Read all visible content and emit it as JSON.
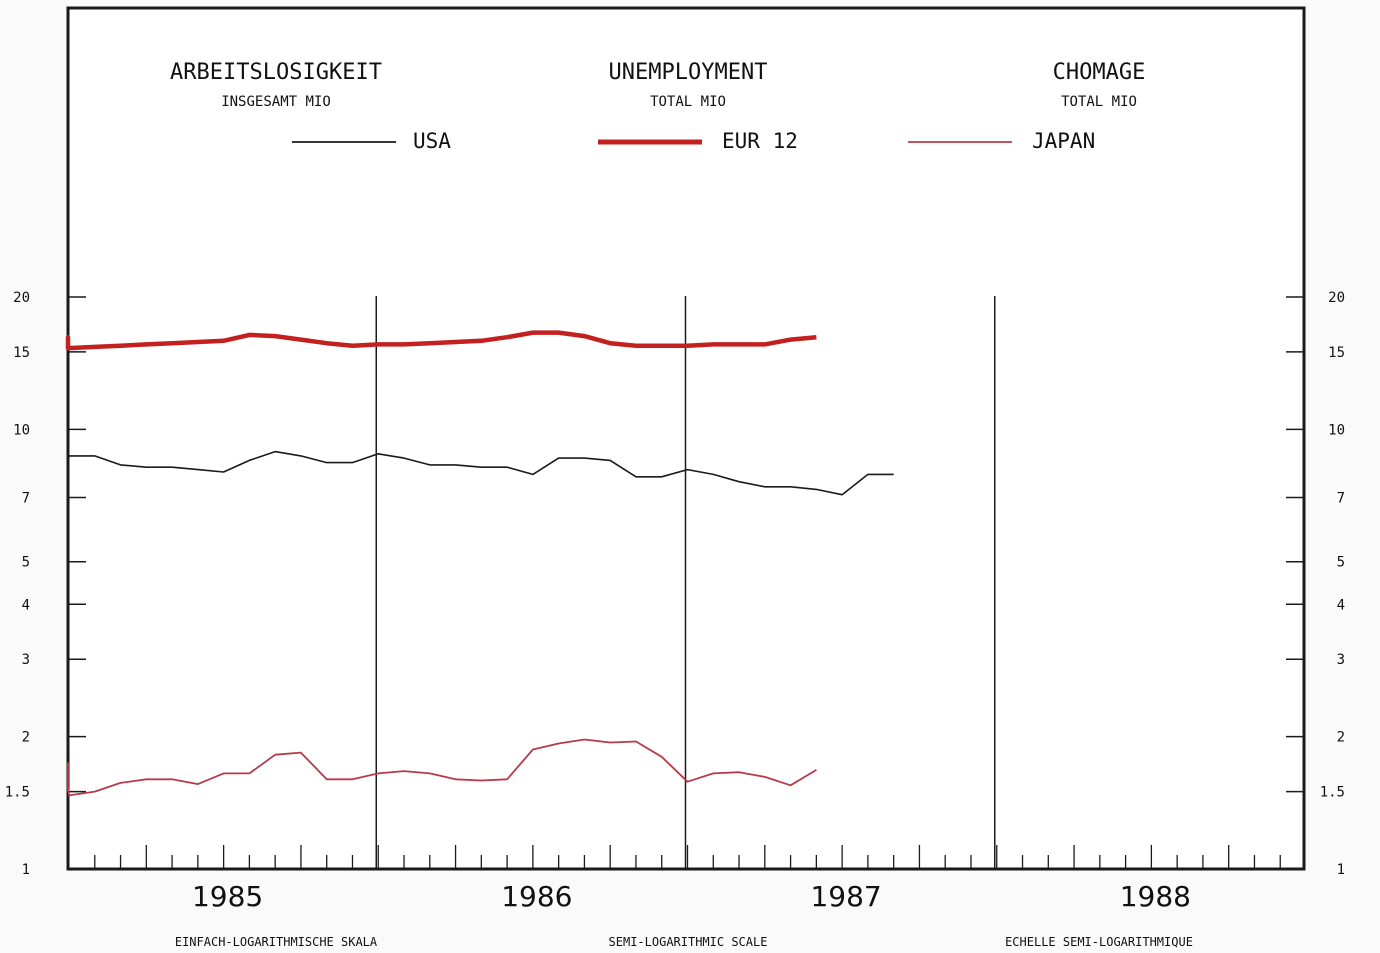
{
  "chart_data": {
    "type": "line",
    "titles": {
      "de": {
        "title": "ARBEITSLOSIGKEIT",
        "subtitle": "INSGESAMT  MIO"
      },
      "en": {
        "title": "UNEMPLOYMENT",
        "subtitle": "TOTAL  MIO"
      },
      "fr": {
        "title": "CHOMAGE",
        "subtitle": "TOTAL  MIO"
      }
    },
    "footer": {
      "de": "EINFACH-LOGARITHMISCHE SKALA",
      "en": "SEMI-LOGARITHMIC SCALE",
      "fr": "ECHELLE SEMI-LOGARITHMIQUE"
    },
    "x_ticks": [
      "1985",
      "1986",
      "1987",
      "1988"
    ],
    "y_scale": "log",
    "ylim": [
      1,
      20
    ],
    "y_ticks": [
      20,
      15,
      10,
      7,
      5,
      4,
      3,
      2,
      1.5,
      1
    ],
    "y_tick_labels": [
      "20",
      "15",
      "10",
      "7",
      "5",
      "4",
      "3",
      "2",
      "1.5",
      "1"
    ],
    "grid": false,
    "legend_position": "top",
    "series": [
      {
        "name": "USA",
        "color": "#1a1a1a",
        "values": [
          8.6,
          9.1,
          9.0,
          8.8,
          8.4,
          8.3,
          8.7,
          8.7,
          8.3,
          8.2,
          8.2,
          8.1,
          8.0,
          8.5,
          8.9,
          8.7,
          8.4,
          8.4,
          8.8,
          8.6,
          8.3,
          8.3,
          8.2,
          8.2,
          7.9,
          8.6,
          8.6,
          8.5,
          7.8,
          7.8,
          8.1,
          7.9,
          7.6,
          7.4,
          7.4,
          7.3,
          7.1,
          7.9,
          7.9
        ]
      },
      {
        "name": "EUR 12",
        "color": "#c42020",
        "values": [
          15.8,
          16.2,
          16.2,
          15.9,
          15.6,
          15.3,
          15.3,
          15.4,
          15.5,
          15.6,
          15.7,
          15.8,
          15.9,
          16.4,
          16.3,
          16.0,
          15.7,
          15.5,
          15.6,
          15.6,
          15.7,
          15.8,
          15.9,
          16.2,
          16.6,
          16.6,
          16.3,
          15.7,
          15.5,
          15.5,
          15.5,
          15.6,
          15.6,
          15.6,
          16.0,
          16.2
        ]
      },
      {
        "name": "JAPAN",
        "color": "#b83a4a",
        "values": [
          1.5,
          1.62,
          1.74,
          1.58,
          1.54,
          1.55,
          1.47,
          1.5,
          1.57,
          1.6,
          1.6,
          1.56,
          1.65,
          1.65,
          1.82,
          1.84,
          1.6,
          1.6,
          1.65,
          1.67,
          1.65,
          1.6,
          1.59,
          1.6,
          1.87,
          1.93,
          1.97,
          1.94,
          1.95,
          1.8,
          1.58,
          1.65,
          1.66,
          1.62,
          1.55,
          1.68
        ]
      }
    ]
  }
}
